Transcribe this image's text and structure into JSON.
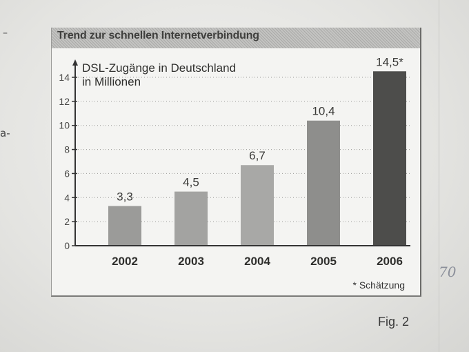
{
  "page": {
    "side_dash": "–",
    "side_fragment": "a-",
    "margin_note": "70",
    "fig_label": "Fig. 2"
  },
  "chart_data": {
    "type": "bar",
    "title": "Trend zur schnellen Internetverbindung",
    "ylabel_line1": "DSL-Zugänge in Deutschland",
    "ylabel_line2": "in Millionen",
    "categories": [
      "2002",
      "2003",
      "2004",
      "2005",
      "2006"
    ],
    "values": [
      3.3,
      4.5,
      6.7,
      10.4,
      14.5
    ],
    "value_labels": [
      "3,3",
      "4,5",
      "6,7",
      "10,4",
      "14,5*"
    ],
    "ylim": [
      0,
      14
    ],
    "yticks": [
      0,
      2,
      4,
      6,
      8,
      10,
      12,
      14
    ],
    "grid": true,
    "bar_colors": [
      "#9b9b99",
      "#a3a3a1",
      "#a8a8a6",
      "#8e8e8c",
      "#4d4d4b"
    ],
    "footnote": "* Schätzung"
  }
}
